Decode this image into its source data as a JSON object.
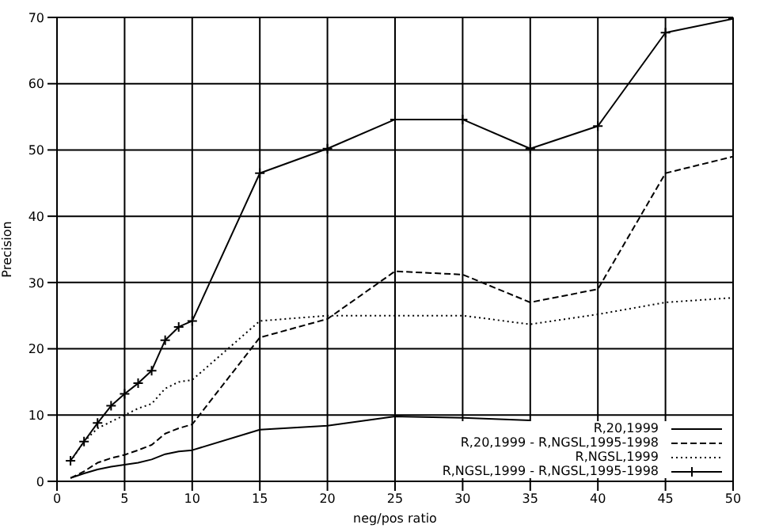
{
  "chart_data": {
    "type": "line",
    "xlabel": "neg/pos ratio",
    "ylabel": "Precision",
    "x": [
      1,
      2,
      3,
      4,
      5,
      6,
      7,
      8,
      9,
      10,
      15,
      20,
      25,
      30,
      35,
      40,
      45,
      50
    ],
    "series": [
      {
        "name": "R,20,1999",
        "color": "#000000",
        "line_style": "solid",
        "marker": "none",
        "values": [
          0.5,
          1.2,
          1.8,
          2.2,
          2.5,
          2.8,
          3.3,
          4.1,
          4.5,
          4.7,
          7.8,
          8.4,
          9.8,
          9.6,
          9.2,
          null,
          null,
          null
        ]
      },
      {
        "name": "R,20,1999 - R,NGSL,1995-1998",
        "color": "#000000",
        "line_style": "dashed",
        "marker": "none",
        "values": [
          0.5,
          1.5,
          2.8,
          3.5,
          4,
          4.7,
          5.5,
          7.2,
          8,
          8.6,
          21.7,
          24.5,
          31.7,
          31.2,
          27,
          29,
          46.5,
          49
        ]
      },
      {
        "name": "R,NGSL,1999",
        "color": "#000000",
        "line_style": "dotted",
        "marker": "none",
        "values": [
          3,
          6,
          8,
          9,
          10,
          11,
          11.7,
          14,
          15,
          15.3,
          24.2,
          25,
          25,
          25,
          23.7,
          25.2,
          27,
          27.7
        ]
      },
      {
        "name": "R,NGSL,1999 - R,NGSL,1995-1998",
        "color": "#000000",
        "line_style": "solid",
        "marker": "cross",
        "values": [
          3.1,
          6,
          8.8,
          11.4,
          13.2,
          14.8,
          16.7,
          21.3,
          23.3,
          24.2,
          46.5,
          50.2,
          54.6,
          54.6,
          50.2,
          53.6,
          67.7,
          69.8
        ]
      }
    ],
    "xlim": [
      0,
      50
    ],
    "xticks": [
      0,
      5,
      10,
      15,
      20,
      25,
      30,
      35,
      40,
      45,
      50
    ],
    "ylim": [
      0,
      70
    ],
    "yticks": [
      0,
      10,
      20,
      30,
      40,
      50,
      60,
      70
    ],
    "grid": true,
    "legend": "bottom right"
  }
}
